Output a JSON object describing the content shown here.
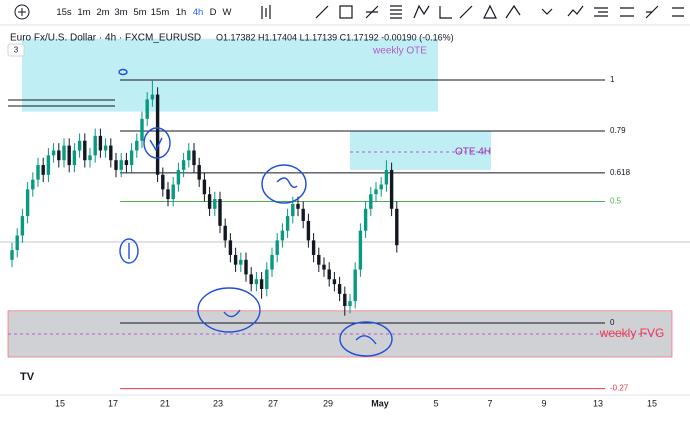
{
  "toolbar": {
    "intervals": [
      "15s",
      "1m",
      "2m",
      "3m",
      "5m",
      "15m",
      "1h",
      "4h",
      "D",
      "W"
    ]
  },
  "header": {
    "symbol": "Euro Fx/U.S. Dollar · 4h · FXCM_EURUSD",
    "ohlc": "O1.17382 H1.17404 L1.17139 C1.17192 -0.00190 (-0.16%)",
    "collapsed_count": "3"
  },
  "chart": {
    "candles": {
      "open": [
        0.26,
        0.3,
        0.36,
        0.44,
        0.55,
        0.59,
        0.65,
        0.61,
        0.69,
        0.71,
        0.67,
        0.73,
        0.65,
        0.71,
        0.75,
        0.67,
        0.69,
        0.77,
        0.71,
        0.73,
        0.67,
        0.63,
        0.67,
        0.65,
        0.71,
        0.75,
        0.84,
        0.92,
        0.94,
        0.61,
        0.55,
        0.51,
        0.57,
        0.63,
        0.67,
        0.71,
        0.65,
        0.59,
        0.53,
        0.47,
        0.51,
        0.4,
        0.34,
        0.28,
        0.24,
        0.26,
        0.2,
        0.16,
        0.18,
        0.14,
        0.22,
        0.28,
        0.34,
        0.38,
        0.44,
        0.49,
        0.47,
        0.42,
        0.34,
        0.28,
        0.24,
        0.22,
        0.18,
        0.16,
        0.12,
        0.07,
        0.09,
        0.22,
        0.38,
        0.47,
        0.53,
        0.55,
        0.57,
        0.63,
        0.47
      ],
      "high": [
        0.33,
        0.39,
        0.47,
        0.58,
        0.62,
        0.68,
        0.68,
        0.72,
        0.74,
        0.74,
        0.76,
        0.76,
        0.74,
        0.78,
        0.78,
        0.72,
        0.8,
        0.8,
        0.76,
        0.76,
        0.7,
        0.7,
        0.7,
        0.74,
        0.78,
        0.87,
        0.95,
        1.0,
        0.97,
        0.64,
        0.58,
        0.6,
        0.66,
        0.7,
        0.74,
        0.74,
        0.68,
        0.62,
        0.56,
        0.54,
        0.54,
        0.43,
        0.37,
        0.31,
        0.29,
        0.29,
        0.23,
        0.21,
        0.21,
        0.25,
        0.31,
        0.37,
        0.41,
        0.47,
        0.52,
        0.52,
        0.5,
        0.45,
        0.37,
        0.31,
        0.27,
        0.25,
        0.21,
        0.19,
        0.15,
        0.12,
        0.25,
        0.41,
        0.5,
        0.56,
        0.58,
        0.6,
        0.67,
        0.66,
        0.5
      ],
      "low": [
        0.23,
        0.27,
        0.33,
        0.41,
        0.52,
        0.56,
        0.58,
        0.58,
        0.66,
        0.64,
        0.64,
        0.62,
        0.62,
        0.68,
        0.64,
        0.64,
        0.66,
        0.68,
        0.68,
        0.64,
        0.6,
        0.6,
        0.62,
        0.62,
        0.68,
        0.72,
        0.81,
        0.89,
        0.58,
        0.52,
        0.48,
        0.48,
        0.54,
        0.6,
        0.64,
        0.62,
        0.56,
        0.5,
        0.44,
        0.44,
        0.37,
        0.31,
        0.25,
        0.21,
        0.21,
        0.17,
        0.13,
        0.13,
        0.1,
        0.11,
        0.19,
        0.25,
        0.31,
        0.35,
        0.41,
        0.44,
        0.39,
        0.31,
        0.25,
        0.21,
        0.19,
        0.15,
        0.13,
        0.09,
        0.03,
        0.04,
        0.06,
        0.19,
        0.35,
        0.44,
        0.5,
        0.52,
        0.54,
        0.44,
        0.29
      ],
      "close": [
        0.3,
        0.36,
        0.44,
        0.55,
        0.59,
        0.65,
        0.61,
        0.69,
        0.71,
        0.67,
        0.73,
        0.65,
        0.71,
        0.75,
        0.67,
        0.69,
        0.77,
        0.71,
        0.73,
        0.67,
        0.63,
        0.67,
        0.65,
        0.71,
        0.75,
        0.84,
        0.92,
        0.94,
        0.61,
        0.55,
        0.51,
        0.57,
        0.63,
        0.67,
        0.71,
        0.65,
        0.59,
        0.53,
        0.47,
        0.51,
        0.4,
        0.34,
        0.28,
        0.24,
        0.26,
        0.2,
        0.16,
        0.18,
        0.14,
        0.22,
        0.28,
        0.34,
        0.38,
        0.44,
        0.49,
        0.47,
        0.42,
        0.34,
        0.28,
        0.24,
        0.22,
        0.18,
        0.16,
        0.12,
        0.07,
        0.09,
        0.22,
        0.38,
        0.47,
        0.53,
        0.55,
        0.57,
        0.63,
        0.47,
        0.32
      ],
      "up_color": "#089981",
      "down_color": "#131722"
    },
    "fib_levels": [
      {
        "value": 1,
        "color": "#131722"
      },
      {
        "value": 0.79,
        "color": "#131722"
      },
      {
        "value": 0.618,
        "color": "#131722"
      },
      {
        "value": 0.5,
        "color": "#4caf50"
      },
      {
        "value": 0,
        "color": "#131722"
      },
      {
        "value": -0.27,
        "color": "#f23645"
      }
    ],
    "zones": [
      {
        "label": "weekly OTE",
        "range": [
          0.87,
          1.17
        ],
        "color": "rgba(0,188,212,0.25)",
        "text_color": "#b45cc7"
      },
      {
        "label": "OTE 4H",
        "range": [
          0.63,
          0.79
        ],
        "color": "rgba(0,188,212,0.25)",
        "text_color": "#9c27b0"
      },
      {
        "label": "weekly FVG",
        "range": [
          -0.14,
          0.05
        ],
        "color": "rgba(120,123,134,0.35)",
        "text_color": "#f23645"
      }
    ],
    "x_labels": [
      "15",
      "17",
      "21",
      "23",
      "27",
      "29",
      "May",
      "5",
      "7",
      "9",
      "13",
      "15"
    ]
  }
}
